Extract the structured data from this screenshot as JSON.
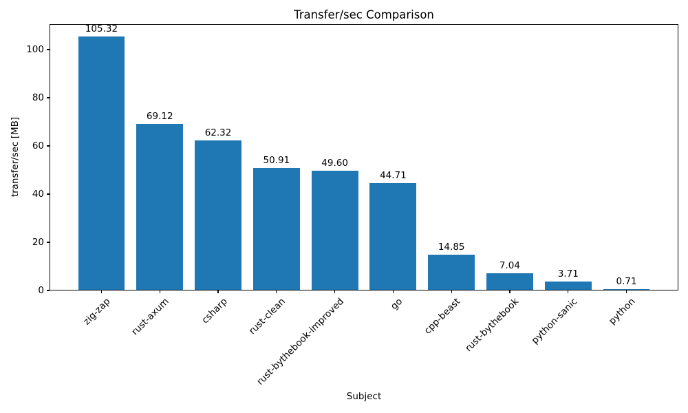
{
  "figure": {
    "background": "#ffffff",
    "spine_color": "#000000",
    "text_color": "#000000"
  },
  "chart_data": {
    "type": "bar",
    "title": "Transfer/sec Comparison",
    "xlabel": "Subject",
    "ylabel": "transfer/sec [MB]",
    "categories": [
      "zig-zap",
      "rust-axum",
      "csharp",
      "rust-clean",
      "rust-bythebook-improved",
      "go",
      "cpp-beast",
      "rust-bythebook",
      "python-sanic",
      "python"
    ],
    "values": [
      105.32,
      69.12,
      62.32,
      50.91,
      49.6,
      44.71,
      14.85,
      7.04,
      3.71,
      0.71
    ],
    "bar_labels": [
      "105.32",
      "69.12",
      "62.32",
      "50.91",
      "49.60",
      "44.71",
      "14.85",
      "7.04",
      "3.71",
      "0.71"
    ],
    "yticks": [
      0,
      20,
      40,
      60,
      80,
      100
    ],
    "ylim": [
      0,
      110.59
    ],
    "xlim": [
      -0.89,
      9.89
    ],
    "bar_width_units": 0.8,
    "bar_color": "#1f77b4",
    "grid": false,
    "legend": "none",
    "xtick_label_rotation_deg": 45
  }
}
